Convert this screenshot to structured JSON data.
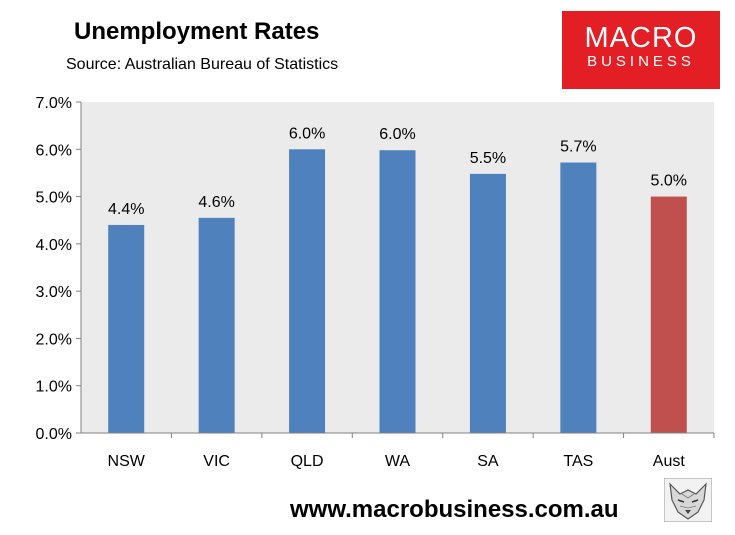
{
  "header": {
    "title": "Unemployment Rates",
    "subtitle": "Source: Australian Bureau of Statistics"
  },
  "logo": {
    "line1": "MACRO",
    "line2": "BUSINESS",
    "color": "#e31e24"
  },
  "footer": {
    "website": "www.macrobusiness.com.au",
    "mascot_icon": "fox-head-icon"
  },
  "colors": {
    "bar": "#4f81bd",
    "highlight_bar": "#c0504d",
    "plot_background": "#ebebeb"
  },
  "chart_data": {
    "type": "bar",
    "title": "Unemployment Rates",
    "subtitle": "Source: Australian Bureau of Statistics",
    "categories": [
      "NSW",
      "VIC",
      "QLD",
      "WA",
      "SA",
      "TAS",
      "Aust"
    ],
    "values": [
      4.4,
      4.55,
      6.0,
      5.98,
      5.48,
      5.72,
      5.0
    ],
    "data_labels": [
      "4.4%",
      "4.6%",
      "6.0%",
      "6.0%",
      "5.5%",
      "5.7%",
      "5.0%"
    ],
    "highlight": [
      "Aust"
    ],
    "ylim": [
      0,
      7
    ],
    "yticks": [
      "0.0%",
      "1.0%",
      "2.0%",
      "3.0%",
      "4.0%",
      "5.0%",
      "6.0%",
      "7.0%"
    ],
    "grid": false,
    "legend": "none"
  }
}
